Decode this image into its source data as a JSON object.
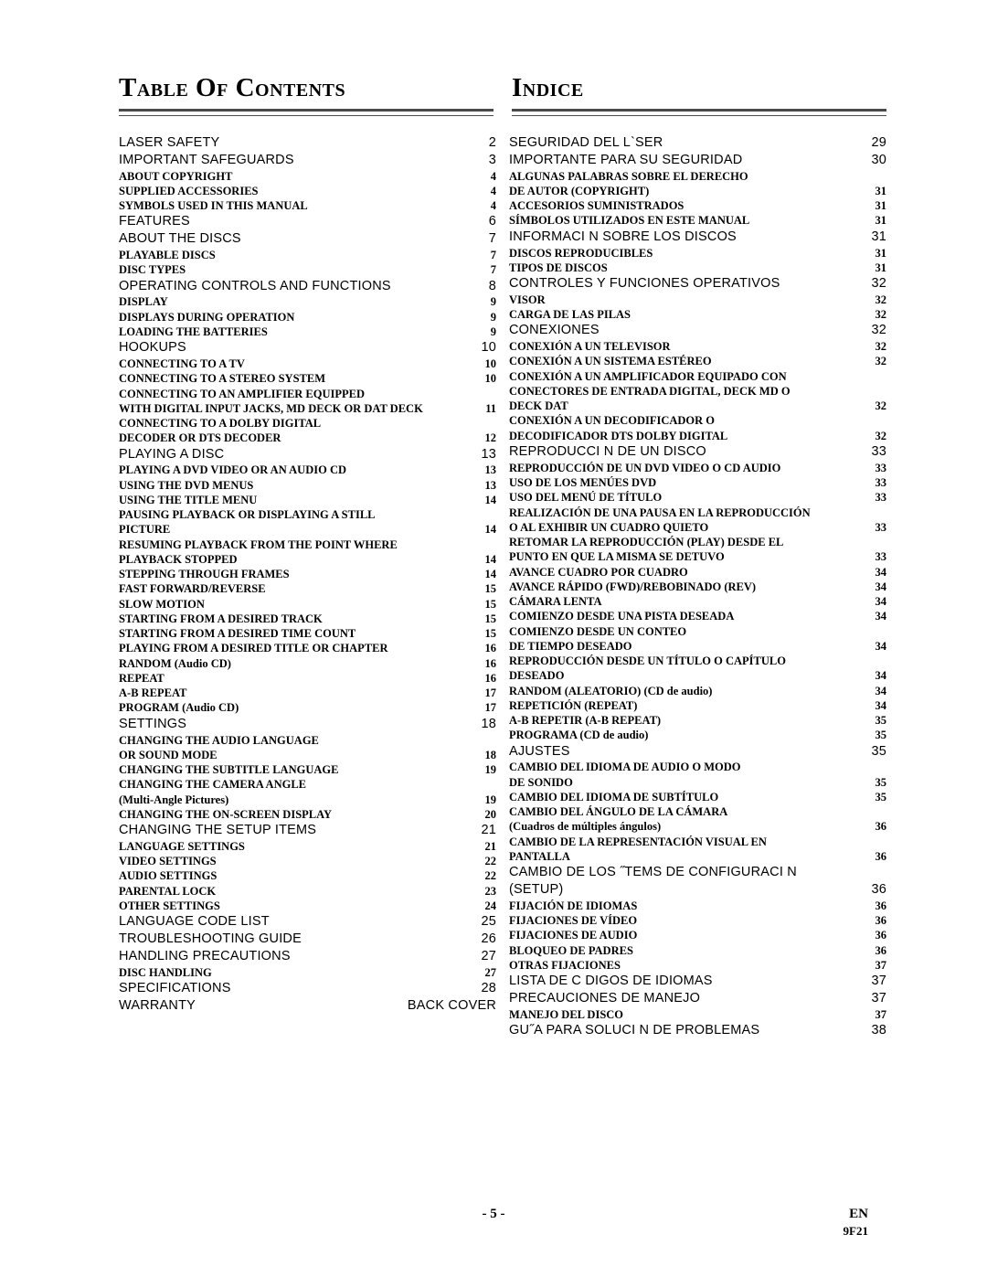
{
  "header_left": "Table Of Contents",
  "header_right": "Indice",
  "footer_page": "- 5 -",
  "footer_lang": "EN",
  "footer_code": "9F21",
  "left": [
    {
      "t": "main",
      "label": "LASER SAFETY",
      "page": "2"
    },
    {
      "t": "main",
      "label": "IMPORTANT SAFEGUARDS",
      "page": "3"
    },
    {
      "t": "sub",
      "label": "ABOUT COPYRIGHT",
      "page": "4"
    },
    {
      "t": "sub",
      "label": "SUPPLIED ACCESSORIES",
      "page": "4"
    },
    {
      "t": "sub",
      "label": "SYMBOLS USED IN THIS MANUAL",
      "page": "4"
    },
    {
      "t": "main",
      "label": "FEATURES",
      "page": "6"
    },
    {
      "t": "main",
      "label": "ABOUT THE DISCS",
      "page": "7"
    },
    {
      "t": "sub",
      "label": "PLAYABLE DISCS",
      "page": "7"
    },
    {
      "t": "sub",
      "label": "DISC TYPES",
      "page": "7"
    },
    {
      "t": "main",
      "label": "OPERATING CONTROLS AND FUNCTIONS",
      "page": "8"
    },
    {
      "t": "sub",
      "label": "DISPLAY",
      "page": "9"
    },
    {
      "t": "sub",
      "label": "DISPLAYS DURING OPERATION",
      "page": "9"
    },
    {
      "t": "sub",
      "label": "LOADING THE BATTERIES",
      "page": "9"
    },
    {
      "t": "main",
      "label": "HOOKUPS",
      "page": "10"
    },
    {
      "t": "sub",
      "label": "CONNECTING TO A TV",
      "page": "10"
    },
    {
      "t": "sub",
      "label": "CONNECTING TO A STEREO SYSTEM",
      "page": "10"
    },
    {
      "t": "sub",
      "label": "CONNECTING TO AN AMPLIFIER EQUIPPED",
      "nopage": true
    },
    {
      "t": "sub",
      "label": "WITH DIGITAL INPUT JACKS, MD DECK OR DAT DECK",
      "page": "11"
    },
    {
      "t": "sub",
      "label": "CONNECTING TO A DOLBY DIGITAL",
      "nopage": true
    },
    {
      "t": "sub",
      "label": "DECODER OR DTS DECODER",
      "page": "12"
    },
    {
      "t": "main",
      "label": "PLAYING A DISC",
      "page": "13"
    },
    {
      "t": "sub",
      "label": "PLAYING A DVD VIDEO OR AN AUDIO CD",
      "page": "13"
    },
    {
      "t": "sub",
      "label": "USING THE DVD MENUS",
      "page": "13"
    },
    {
      "t": "sub",
      "label": "USING THE TITLE MENU",
      "page": "14"
    },
    {
      "t": "sub",
      "label": "PAUSING PLAYBACK OR DISPLAYING A STILL",
      "nopage": true
    },
    {
      "t": "sub",
      "label": "PICTURE",
      "page": "14"
    },
    {
      "t": "sub",
      "label": "RESUMING PLAYBACK FROM THE POINT WHERE",
      "nopage": true
    },
    {
      "t": "sub",
      "label": "PLAYBACK STOPPED",
      "page": "14"
    },
    {
      "t": "sub",
      "label": "STEPPING THROUGH FRAMES",
      "page": "14"
    },
    {
      "t": "sub",
      "label": "FAST FORWARD/REVERSE",
      "page": "15"
    },
    {
      "t": "sub",
      "label": "SLOW MOTION",
      "page": "15"
    },
    {
      "t": "sub",
      "label": "STARTING FROM A DESIRED TRACK",
      "page": "15"
    },
    {
      "t": "sub",
      "label": "STARTING FROM A DESIRED TIME COUNT",
      "page": "15"
    },
    {
      "t": "sub",
      "label": "PLAYING FROM A DESIRED TITLE OR CHAPTER",
      "page": "16"
    },
    {
      "t": "sub",
      "label": "RANDOM (Audio CD)",
      "page": "16"
    },
    {
      "t": "sub",
      "label": "REPEAT",
      "page": "16"
    },
    {
      "t": "sub",
      "label": "A-B REPEAT",
      "page": "17"
    },
    {
      "t": "sub",
      "label": "PROGRAM (Audio CD)",
      "page": "17"
    },
    {
      "t": "main",
      "label": "SETTINGS",
      "page": "18"
    },
    {
      "t": "sub",
      "label": "CHANGING THE AUDIO LANGUAGE",
      "nopage": true
    },
    {
      "t": "sub",
      "label": "OR SOUND MODE",
      "page": "18"
    },
    {
      "t": "sub",
      "label": "CHANGING THE SUBTITLE LANGUAGE",
      "page": "19"
    },
    {
      "t": "sub",
      "label": "CHANGING THE CAMERA ANGLE",
      "nopage": true
    },
    {
      "t": "sub",
      "label": "(Multi-Angle Pictures)",
      "page": "19"
    },
    {
      "t": "sub",
      "label": "CHANGING THE ON-SCREEN DISPLAY",
      "page": "20"
    },
    {
      "t": "main",
      "label": "CHANGING THE SETUP ITEMS",
      "page": "21"
    },
    {
      "t": "sub",
      "label": "LANGUAGE SETTINGS",
      "page": "21"
    },
    {
      "t": "sub",
      "label": "VIDEO SETTINGS",
      "page": "22"
    },
    {
      "t": "sub",
      "label": "AUDIO SETTINGS",
      "page": "22"
    },
    {
      "t": "sub",
      "label": "PARENTAL LOCK",
      "page": "23"
    },
    {
      "t": "sub",
      "label": "OTHER SETTINGS",
      "page": "24"
    },
    {
      "t": "main",
      "label": "LANGUAGE CODE LIST",
      "page": "25"
    },
    {
      "t": "main",
      "label": "TROUBLESHOOTING GUIDE",
      "page": "26"
    },
    {
      "t": "main",
      "label": "HANDLING PRECAUTIONS",
      "page": "27"
    },
    {
      "t": "sub",
      "label": "DISC HANDLING",
      "page": "27"
    },
    {
      "t": "main",
      "label": "SPECIFICATIONS",
      "page": "28"
    },
    {
      "t": "main",
      "label": "WARRANTY",
      "page": "BACK COVER"
    }
  ],
  "right": [
    {
      "t": "main",
      "label": "SEGURIDAD DEL L`SER",
      "page": "29"
    },
    {
      "t": "main",
      "label": "IMPORTANTE PARA SU SEGURIDAD",
      "page": "30"
    },
    {
      "t": "sub",
      "label": "ALGUNAS PALABRAS SOBRE EL DERECHO",
      "nopage": true
    },
    {
      "t": "sub",
      "label": "DE AUTOR (COPYRIGHT)",
      "page": "31"
    },
    {
      "t": "sub",
      "label": "ACCESORIOS SUMINISTRADOS",
      "page": "31"
    },
    {
      "t": "sub",
      "label": "SÍMBOLOS UTILIZADOS EN ESTE MANUAL",
      "page": "31"
    },
    {
      "t": "main",
      "label": "INFORMACI N SOBRE LOS DISCOS",
      "page": "31"
    },
    {
      "t": "sub",
      "label": "DISCOS REPRODUCIBLES",
      "page": "31"
    },
    {
      "t": "sub",
      "label": "TIPOS DE DISCOS",
      "page": "31"
    },
    {
      "t": "main",
      "label": "CONTROLES Y FUNCIONES OPERATIVOS",
      "page": "32"
    },
    {
      "t": "sub",
      "label": "VISOR",
      "page": "32"
    },
    {
      "t": "sub",
      "label": "CARGA DE LAS PILAS",
      "page": "32"
    },
    {
      "t": "main",
      "label": "CONEXIONES",
      "page": "32"
    },
    {
      "t": "sub",
      "label": "CONEXIÓN A UN TELEVISOR",
      "page": "32"
    },
    {
      "t": "sub",
      "label": "CONEXIÓN A UN SISTEMA ESTÉREO",
      "page": "32"
    },
    {
      "t": "sub",
      "label": "CONEXIÓN A UN AMPLIFICADOR EQUIPADO CON",
      "nopage": true
    },
    {
      "t": "sub",
      "label": "CONECTORES DE ENTRADA DIGITAL, DECK MD O",
      "nopage": true
    },
    {
      "t": "sub",
      "label": "DECK DAT",
      "page": "32"
    },
    {
      "t": "sub",
      "label": "CONEXIÓN A UN DECODIFICADOR O",
      "nopage": true
    },
    {
      "t": "sub",
      "label": "DECODIFICADOR DTS DOLBY DIGITAL",
      "page": "32"
    },
    {
      "t": "main",
      "label": "REPRODUCCI N DE UN DISCO",
      "page": "33"
    },
    {
      "t": "sub",
      "label": "REPRODUCCIÓN DE UN DVD VIDEO O CD AUDIO",
      "page": "33"
    },
    {
      "t": "sub",
      "label": "USO DE LOS MENÚES DVD",
      "page": "33"
    },
    {
      "t": "sub",
      "label": "USO DEL MENÚ DE TÍTULO",
      "page": "33"
    },
    {
      "t": "sub",
      "label": "REALIZACIÓN DE UNA PAUSA EN LA REPRODUCCIÓN",
      "nopage": true
    },
    {
      "t": "sub",
      "label": "O AL EXHIBIR UN CUADRO QUIETO",
      "page": "33"
    },
    {
      "t": "sub",
      "label": "RETOMAR LA REPRODUCCIÓN (PLAY) DESDE EL",
      "nopage": true
    },
    {
      "t": "sub",
      "label": "PUNTO EN QUE LA MISMA SE DETUVO",
      "page": "33"
    },
    {
      "t": "sub",
      "label": "AVANCE CUADRO POR CUADRO",
      "page": "34"
    },
    {
      "t": "sub",
      "label": "AVANCE RÁPIDO (FWD)/REBOBINADO (REV)",
      "page": "34"
    },
    {
      "t": "sub",
      "label": "CÁMARA LENTA",
      "page": "34"
    },
    {
      "t": "sub",
      "label": "COMIENZO DESDE UNA PISTA DESEADA",
      "page": "34"
    },
    {
      "t": "sub",
      "label": "COMIENZO DESDE UN CONTEO",
      "nopage": true
    },
    {
      "t": "sub",
      "label": "DE TIEMPO DESEADO",
      "page": "34"
    },
    {
      "t": "sub",
      "label": "REPRODUCCIÓN DESDE UN TÍTULO O CAPÍTULO",
      "nopage": true
    },
    {
      "t": "sub",
      "label": "DESEADO",
      "page": "34"
    },
    {
      "t": "sub",
      "label": "RANDOM (ALEATORIO) (CD de audio)",
      "page": "34"
    },
    {
      "t": "sub",
      "label": "REPETICIÓN (REPEAT)",
      "page": "34"
    },
    {
      "t": "sub",
      "label": "A-B REPETIR (A-B REPEAT)",
      "page": "35"
    },
    {
      "t": "sub",
      "label": "PROGRAMA (CD de audio)",
      "page": "35"
    },
    {
      "t": "main",
      "label": "AJUSTES",
      "page": "35"
    },
    {
      "t": "sub",
      "label": "CAMBIO DEL IDIOMA DE AUDIO O MODO",
      "nopage": true
    },
    {
      "t": "sub",
      "label": "DE SONIDO",
      "page": "35"
    },
    {
      "t": "sub",
      "label": "CAMBIO DEL IDIOMA DE SUBTÍTULO",
      "page": "35"
    },
    {
      "t": "sub",
      "label": "CAMBIO DEL ÁNGULO DE LA CÁMARA",
      "nopage": true
    },
    {
      "t": "sub",
      "label": "(Cuadros de múltiples ángulos)",
      "page": "36"
    },
    {
      "t": "sub",
      "label": "CAMBIO DE LA REPRESENTACIÓN VISUAL EN",
      "nopage": true
    },
    {
      "t": "sub",
      "label": "PANTALLA",
      "page": "36"
    },
    {
      "t": "main",
      "label": "CAMBIO DE LOS ˝TEMS DE CONFIGURACI N",
      "nopage": true
    },
    {
      "t": "main",
      "label": "(SETUP)",
      "page": "36"
    },
    {
      "t": "sub",
      "label": "FIJACIÓN DE IDIOMAS",
      "page": "36"
    },
    {
      "t": "sub",
      "label": "FIJACIONES DE VÍDEO",
      "page": "36"
    },
    {
      "t": "sub",
      "label": "FIJACIONES DE AUDIO",
      "page": "36"
    },
    {
      "t": "sub",
      "label": "BLOQUEO DE PADRES",
      "page": "36"
    },
    {
      "t": "sub",
      "label": "OTRAS FIJACIONES",
      "page": "37"
    },
    {
      "t": "main",
      "label": "LISTA DE C DIGOS DE IDIOMAS",
      "page": "37"
    },
    {
      "t": "main",
      "label": "PRECAUCIONES DE MANEJO",
      "page": "37"
    },
    {
      "t": "sub",
      "label": "MANEJO DEL DISCO",
      "page": "37"
    },
    {
      "t": "main",
      "label": "GU˝A PARA SOLUCI N DE PROBLEMAS",
      "page": "38"
    }
  ]
}
